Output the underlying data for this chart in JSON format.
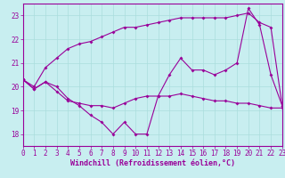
{
  "background_color": "#c8eef0",
  "line_color": "#990099",
  "xlabel": "Windchill (Refroidissement éolien,°C)",
  "xlim": [
    0,
    23
  ],
  "ylim": [
    17.5,
    23.5
  ],
  "yticks": [
    18,
    19,
    20,
    21,
    22,
    23
  ],
  "xticks": [
    0,
    1,
    2,
    3,
    4,
    5,
    6,
    7,
    8,
    9,
    10,
    11,
    12,
    13,
    14,
    15,
    16,
    17,
    18,
    19,
    20,
    21,
    22,
    23
  ],
  "line1_x": [
    0,
    1,
    2,
    3,
    4,
    5,
    6,
    7,
    8,
    9,
    10,
    11,
    12,
    13,
    14,
    15,
    16,
    17,
    18,
    19,
    20,
    21,
    22,
    23
  ],
  "line1_y": [
    20.3,
    19.9,
    20.2,
    20.0,
    19.5,
    19.2,
    18.8,
    18.5,
    18.0,
    18.5,
    18.0,
    18.0,
    19.6,
    20.5,
    21.2,
    20.7,
    20.7,
    20.5,
    20.7,
    21.0,
    23.3,
    22.6,
    20.5,
    19.2
  ],
  "line2_x": [
    0,
    1,
    2,
    3,
    4,
    5,
    6,
    7,
    8,
    9,
    10,
    11,
    12,
    13,
    14,
    15,
    16,
    17,
    18,
    19,
    20,
    21,
    22,
    23
  ],
  "line2_y": [
    20.3,
    20.0,
    20.8,
    21.2,
    21.6,
    21.8,
    21.9,
    22.1,
    22.3,
    22.5,
    22.5,
    22.6,
    22.7,
    22.8,
    22.9,
    22.9,
    22.9,
    22.9,
    22.9,
    23.0,
    23.1,
    22.7,
    22.5,
    19.2
  ],
  "line3_x": [
    0,
    1,
    2,
    3,
    4,
    5,
    6,
    7,
    8,
    9,
    10,
    11,
    12,
    13,
    14,
    15,
    16,
    17,
    18,
    19,
    20,
    21,
    22,
    23
  ],
  "line3_y": [
    20.3,
    19.9,
    20.2,
    19.8,
    19.4,
    19.3,
    19.2,
    19.2,
    19.1,
    19.3,
    19.5,
    19.6,
    19.6,
    19.6,
    19.7,
    19.6,
    19.5,
    19.4,
    19.4,
    19.3,
    19.3,
    19.2,
    19.1,
    19.1
  ],
  "marker": "D",
  "markersize": 2,
  "linewidth": 0.8,
  "grid_color": "#aadddd",
  "xlabel_fontsize": 6,
  "tick_fontsize": 5.5
}
